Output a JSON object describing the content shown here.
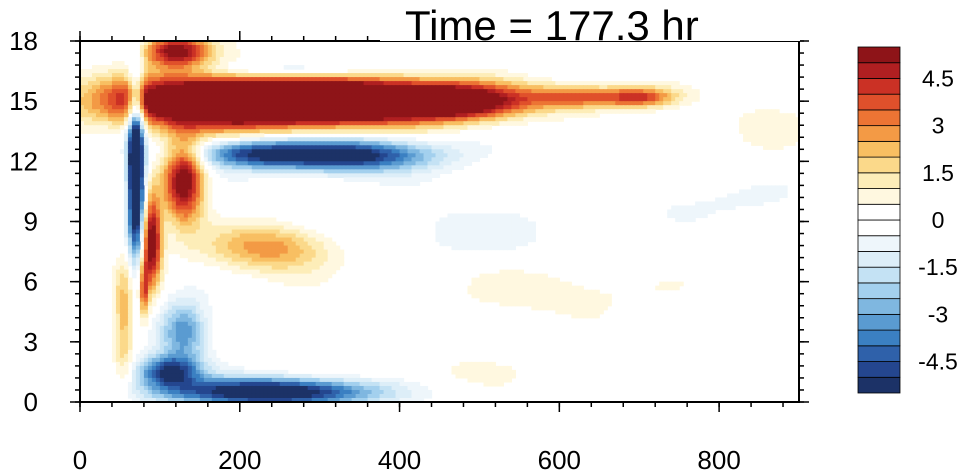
{
  "chart_data": {
    "type": "heatmap",
    "title": "Time = 177.3 hr",
    "xlabel": "",
    "ylabel": "",
    "xlim": [
      0,
      900
    ],
    "ylim": [
      0,
      18
    ],
    "x_ticks": [
      0,
      200,
      400,
      600,
      800
    ],
    "y_ticks": [
      0,
      3,
      6,
      9,
      12,
      15,
      18
    ],
    "x_tick_labels": [
      "0",
      "200",
      "400",
      "600",
      "800"
    ],
    "y_tick_labels": [
      "0",
      "3",
      "6",
      "9",
      "12",
      "15",
      "18"
    ],
    "colorbar": {
      "levels": [
        -5.5,
        -5,
        -4.5,
        -4,
        -3.5,
        -3,
        -2.5,
        -2,
        -1.5,
        -1,
        -0.5,
        0,
        0.5,
        1,
        1.5,
        2,
        2.5,
        3,
        3.5,
        4,
        4.5,
        5,
        5.5
      ],
      "colors": [
        "#1c3267",
        "#24468f",
        "#2f61aa",
        "#3b80c2",
        "#5a9bd1",
        "#7fb7e0",
        "#a3d0ee",
        "#c4e2f4",
        "#ddeef8",
        "#eef6fb",
        "#ffffff",
        "#ffffff",
        "#fff8e0",
        "#fdedb8",
        "#fbd98a",
        "#f8bf62",
        "#f39a45",
        "#ec7434",
        "#e0502b",
        "#cb3125",
        "#b01f21",
        "#8e1418"
      ],
      "labels": [
        "4.5",
        "3",
        "1.5",
        "0",
        "-1.5",
        "-3",
        "-4.5"
      ],
      "label_values": [
        4.5,
        3,
        1.5,
        0,
        -1.5,
        -3,
        -4.5
      ]
    },
    "features": [
      {
        "x": 170,
        "y": 15.0,
        "sx": 140,
        "sy": 1.3,
        "amp": 8.5
      },
      {
        "x": 330,
        "y": 15.0,
        "sx": 120,
        "sy": 1.1,
        "amp": 8.0
      },
      {
        "x": 470,
        "y": 15.0,
        "sx": 90,
        "sy": 0.9,
        "amp": 6.5
      },
      {
        "x": 620,
        "y": 15.2,
        "sx": 60,
        "sy": 0.6,
        "amp": 3.5
      },
      {
        "x": 700,
        "y": 15.2,
        "sx": 45,
        "sy": 0.5,
        "amp": 3.8
      },
      {
        "x": 130,
        "y": 11.0,
        "sx": 25,
        "sy": 2.0,
        "amp": 6.0
      },
      {
        "x": 90,
        "y": 8.0,
        "sx": 12,
        "sy": 2.2,
        "amp": 6.0
      },
      {
        "x": 70,
        "y": 11.5,
        "sx": 10,
        "sy": 4.0,
        "amp": -9.0
      },
      {
        "x": 55,
        "y": 4.0,
        "sx": 12,
        "sy": 3.0,
        "amp": 2.5
      },
      {
        "x": 80,
        "y": 5.5,
        "sx": 6,
        "sy": 1.5,
        "amp": 3.5
      },
      {
        "x": 120,
        "y": 17.5,
        "sx": 40,
        "sy": 0.8,
        "amp": 5.5
      },
      {
        "x": 240,
        "y": 7.7,
        "sx": 80,
        "sy": 1.2,
        "amp": 3.0
      },
      {
        "x": 330,
        "y": 12.3,
        "sx": 110,
        "sy": 0.8,
        "amp": -6.0
      },
      {
        "x": 210,
        "y": 12.4,
        "sx": 70,
        "sy": 0.7,
        "amp": -3.5
      },
      {
        "x": 260,
        "y": 16.5,
        "sx": 100,
        "sy": 0.5,
        "amp": -2.5
      },
      {
        "x": 240,
        "y": 0.5,
        "sx": 130,
        "sy": 0.7,
        "amp": -6.5
      },
      {
        "x": 110,
        "y": 1.5,
        "sx": 40,
        "sy": 0.8,
        "amp": -5.0
      },
      {
        "x": 130,
        "y": 3.5,
        "sx": 30,
        "sy": 1.5,
        "amp": -3.5
      },
      {
        "x": 600,
        "y": 5.5,
        "sx": 120,
        "sy": 1.2,
        "amp": 0.9
      },
      {
        "x": 780,
        "y": 10.0,
        "sx": 120,
        "sy": 1.0,
        "amp": -0.6
      },
      {
        "x": 440,
        "y": 8.5,
        "sx": 180,
        "sy": 1.5,
        "amp": -0.7
      },
      {
        "x": 430,
        "y": 1.5,
        "sx": 120,
        "sy": 1.0,
        "amp": 0.6
      },
      {
        "x": 860,
        "y": 14.0,
        "sx": 60,
        "sy": 1.5,
        "amp": 0.6
      }
    ]
  }
}
